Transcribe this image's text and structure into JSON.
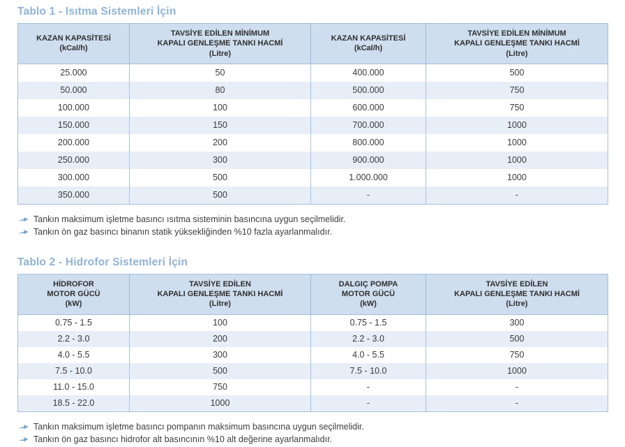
{
  "colors": {
    "title_blue": "#8fb3d9",
    "header_bg": "#cfdeee",
    "row_alt_bg": "#e7eef7",
    "table_border": "#a3bfdc",
    "arrow_blue": "#74a5ce",
    "body_text": "#3a3a3a"
  },
  "table1": {
    "title": "Tablo 1 - Isıtma Sistemleri İçin",
    "headers": [
      "KAZAN KAPASİTESİ\n(kCal/h)",
      "TAVSİYE EDİLEN MİNİMUM\nKAPALI GENLEŞME TANKI HACMİ\n(Litre)",
      "KAZAN KAPASİTESİ\n(kCal/h)",
      "TAVSİYE EDİLEN MİNİMUM\nKAPALI GENLEŞME TANKI HACMİ\n(Litre)"
    ],
    "rows": [
      [
        "25.000",
        "50",
        "400.000",
        "500"
      ],
      [
        "50.000",
        "80",
        "500.000",
        "750"
      ],
      [
        "100.000",
        "100",
        "600.000",
        "750"
      ],
      [
        "150.000",
        "150",
        "700.000",
        "1000"
      ],
      [
        "200.000",
        "200",
        "800.000",
        "1000"
      ],
      [
        "250.000",
        "300",
        "900.000",
        "1000"
      ],
      [
        "300.000",
        "500",
        "1.000.000",
        "1000"
      ],
      [
        "350.000",
        "500",
        "-",
        "-"
      ]
    ],
    "notes": [
      "Tankın maksimum işletme basıncı ısıtma sisteminin basıncına uygun seçilmelidir.",
      "Tankın ön gaz basıncı binanın statik yüksekliğinden %10 fazla ayarlanmalıdır."
    ]
  },
  "table2": {
    "title": "Tablo 2 - Hidrofor Sistemleri İçin",
    "headers": [
      "HİDROFOR\nMOTOR GÜCÜ\n(kW)",
      "TAVSİYE EDİLEN\nKAPALI GENLEŞME TANKI HACMİ\n(Litre)",
      "DALGIÇ POMPA\nMOTOR GÜCÜ\n(kW)",
      "TAVSİYE EDİLEN\nKAPALI GENLEŞME TANKI HACMİ\n(Litre)"
    ],
    "rows": [
      [
        "0.75 - 1.5",
        "100",
        "0.75 - 1.5",
        "300"
      ],
      [
        "2.2 - 3.0",
        "200",
        "2.2 - 3.0",
        "500"
      ],
      [
        "4.0 - 5.5",
        "300",
        "4.0 - 5.5",
        "750"
      ],
      [
        "7.5 - 10.0",
        "500",
        "7.5 - 10.0",
        "1000"
      ],
      [
        "11.0 - 15.0",
        "750",
        "-",
        "-"
      ],
      [
        "18.5 - 22.0",
        "1000",
        "-",
        "-"
      ]
    ],
    "notes": [
      "Tankın maksimum işletme basıncı pompanın maksimum basıncına uygun seçilmelidir.",
      "Tankın ön gaz basıncı hidrofor alt basıncının %10 alt değerine ayarlanmalıdır."
    ]
  }
}
